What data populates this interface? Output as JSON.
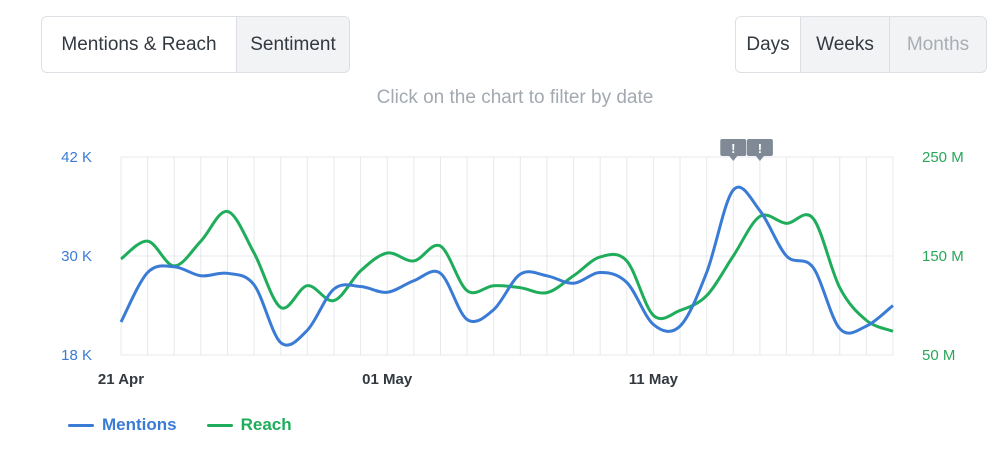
{
  "tabs": {
    "metric": [
      {
        "label": "Mentions & Reach",
        "active": true
      },
      {
        "label": "Sentiment",
        "active": false
      }
    ],
    "period": [
      {
        "label": "Days",
        "active": true
      },
      {
        "label": "Weeks",
        "active": false
      },
      {
        "label": "Months",
        "active": false,
        "disabled": true
      }
    ]
  },
  "hint": "Click on the chart to filter by date",
  "colors": {
    "mentions": "#3a7bd5",
    "reach": "#1fad5b",
    "grid": "#e6e8eb",
    "marker": "#7f8a96"
  },
  "chart_data": {
    "type": "line",
    "x": [
      "21 Apr",
      "22 Apr",
      "23 Apr",
      "24 Apr",
      "25 Apr",
      "26 Apr",
      "27 Apr",
      "28 Apr",
      "29 Apr",
      "30 Apr",
      "01 May",
      "02 May",
      "03 May",
      "04 May",
      "05 May",
      "06 May",
      "07 May",
      "08 May",
      "09 May",
      "10 May",
      "11 May",
      "12 May",
      "13 May",
      "14 May",
      "15 May",
      "16 May",
      "17 May",
      "18 May",
      "19 May",
      "20 May"
    ],
    "xtick_labels": [
      "21 Apr",
      "01 May",
      "11 May"
    ],
    "xtick_positions": [
      0,
      10,
      20
    ],
    "series": [
      {
        "name": "Mentions",
        "axis": "left",
        "values": [
          22.0,
          28.0,
          28.7,
          27.6,
          27.9,
          26.5,
          19.5,
          21.0,
          26.0,
          26.3,
          25.6,
          27.0,
          27.9,
          22.3,
          23.5,
          27.8,
          27.6,
          26.7,
          28.0,
          26.8,
          21.7,
          21.5,
          28.0,
          38.0,
          35.5,
          30.0,
          28.6,
          21.2,
          21.5,
          24.0
        ]
      },
      {
        "name": "Reach",
        "axis": "right",
        "values": [
          147,
          165,
          140,
          165,
          195,
          153,
          98,
          120,
          105,
          135,
          153,
          145,
          160,
          115,
          120,
          118,
          113,
          130,
          149,
          145,
          90,
          95,
          110,
          150,
          190,
          183,
          188,
          118,
          85,
          74
        ]
      }
    ],
    "y_left": {
      "min": 18,
      "max": 42,
      "ticks": [
        "18 K",
        "30 K",
        "42 K"
      ],
      "tick_values": [
        18,
        30,
        42
      ]
    },
    "y_right": {
      "min": 50,
      "max": 250,
      "ticks": [
        "50 M",
        "150 M",
        "250 M"
      ],
      "tick_values": [
        50,
        150,
        250
      ]
    },
    "markers": [
      {
        "x": 23,
        "label": "!"
      },
      {
        "x": 24,
        "label": "!"
      }
    ],
    "grid": true,
    "legend_position": "bottom-left"
  }
}
